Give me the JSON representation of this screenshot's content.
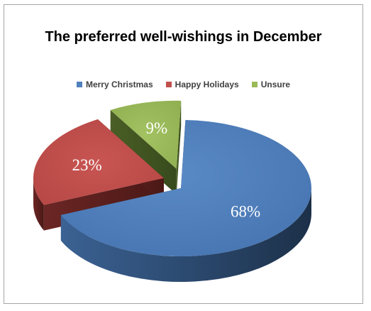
{
  "chart_data": {
    "type": "pie",
    "title": "The preferred well-wishings in December",
    "legend_position": "top",
    "categories": [
      "Merry Christmas",
      "Happy Holidays",
      "Unsure"
    ],
    "values": [
      68,
      23,
      9
    ],
    "value_labels": [
      "68%",
      "23%",
      "9%"
    ],
    "colors": [
      "#4f81bd",
      "#c0504d",
      "#9bbb59"
    ],
    "exploded": true,
    "three_d": true
  }
}
